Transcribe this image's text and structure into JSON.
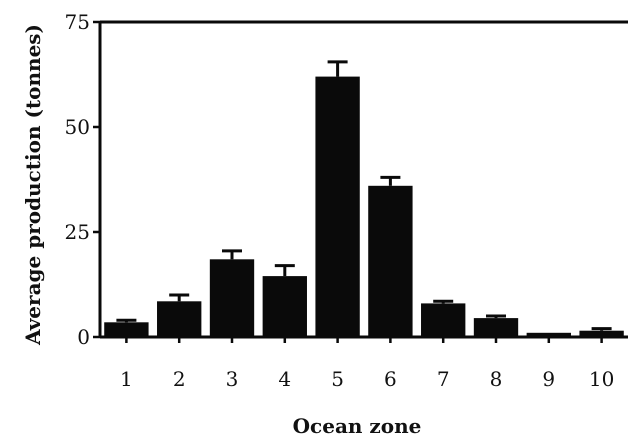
{
  "chart_data": {
    "type": "bar",
    "xlabel": "Ocean zone",
    "ylabel": "Average production (tonnes)",
    "categories": [
      "1",
      "2",
      "3",
      "4",
      "5",
      "6",
      "7",
      "8",
      "9",
      "10"
    ],
    "values": [
      3.5,
      8.5,
      18.5,
      14.5,
      62,
      36,
      8,
      4.5,
      1,
      1.5
    ],
    "errors": [
      0.5,
      1.5,
      2,
      2.5,
      3.5,
      2,
      0.5,
      0.5,
      0,
      0.5
    ],
    "ylim": [
      0,
      75
    ],
    "yticks": [
      0,
      25,
      50,
      75
    ],
    "grid": false
  }
}
